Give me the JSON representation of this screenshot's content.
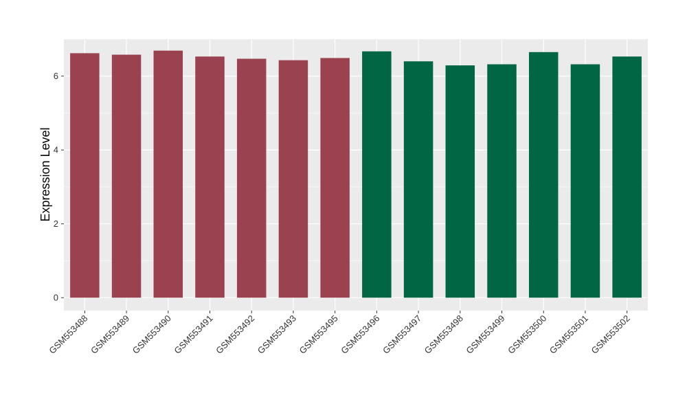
{
  "chart_data": {
    "type": "bar",
    "title": "",
    "xlabel": "",
    "ylabel": "Expression Level",
    "ylim": [
      -0.35,
      7.0
    ],
    "yticks": [
      0,
      2,
      4,
      6
    ],
    "grid": true,
    "legend": "none",
    "colors": {
      "panel": "#ebebeb",
      "grid": "#ffffff",
      "group1": "#9b4250",
      "group2": "#006644",
      "tick": "#333333"
    },
    "categories": [
      "GSM553488",
      "GSM553489",
      "GSM553490",
      "GSM553491",
      "GSM553492",
      "GSM553493",
      "GSM553495",
      "GSM553496",
      "GSM553497",
      "GSM553498",
      "GSM553499",
      "GSM553500",
      "GSM553501",
      "GSM553502"
    ],
    "values": [
      6.62,
      6.58,
      6.69,
      6.53,
      6.47,
      6.43,
      6.49,
      6.67,
      6.4,
      6.29,
      6.32,
      6.65,
      6.32,
      6.53
    ],
    "groups": [
      1,
      1,
      1,
      1,
      1,
      1,
      1,
      2,
      2,
      2,
      2,
      2,
      2,
      2
    ]
  }
}
